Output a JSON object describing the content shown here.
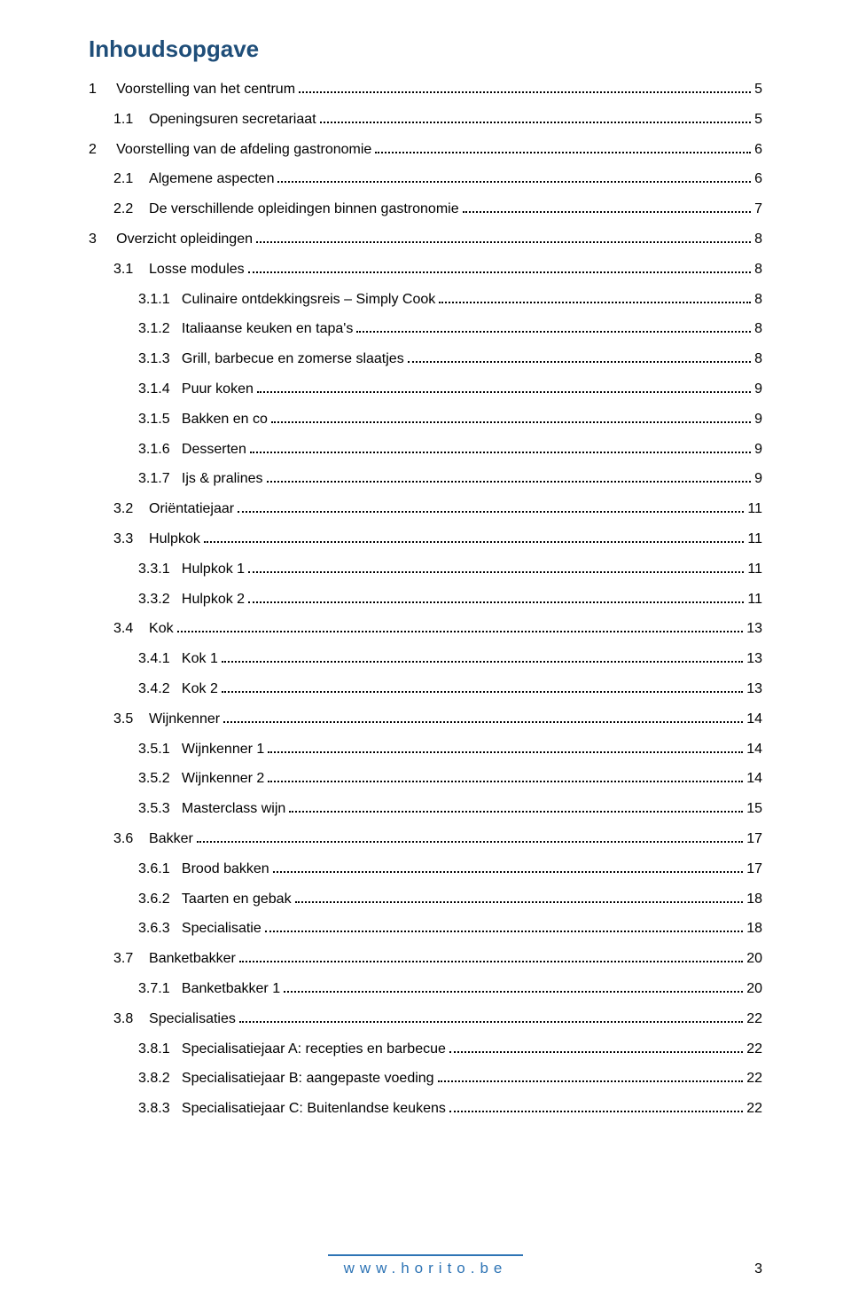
{
  "title": "Inhoudsopgave",
  "colors": {
    "heading": "#1f4e79",
    "text": "#000000",
    "accent": "#2e74b5",
    "background": "#ffffff"
  },
  "typography": {
    "font_family": "Arial",
    "title_fontsize": 26,
    "body_fontsize": 16,
    "footer_fontsize": 17,
    "footer_letterspacing": 6
  },
  "toc": [
    {
      "level": 0,
      "num": "1",
      "text": "Voorstelling van het centrum",
      "page": "5"
    },
    {
      "level": 1,
      "num": "1.1",
      "text": "Openingsuren secretariaat",
      "page": "5"
    },
    {
      "level": 0,
      "num": "2",
      "text": "Voorstelling van de afdeling gastronomie",
      "page": "6"
    },
    {
      "level": 1,
      "num": "2.1",
      "text": "Algemene aspecten",
      "page": "6"
    },
    {
      "level": 1,
      "num": "2.2",
      "text": "De verschillende opleidingen binnen gastronomie",
      "page": "7"
    },
    {
      "level": 0,
      "num": "3",
      "text": "Overzicht opleidingen",
      "page": "8"
    },
    {
      "level": 1,
      "num": "3.1",
      "text": "Losse modules",
      "page": "8"
    },
    {
      "level": 2,
      "num": "3.1.1",
      "text": "Culinaire ontdekkingsreis – Simply Cook",
      "page": "8"
    },
    {
      "level": 2,
      "num": "3.1.2",
      "text": "Italiaanse keuken en tapa's",
      "page": "8"
    },
    {
      "level": 2,
      "num": "3.1.3",
      "text": "Grill, barbecue en zomerse slaatjes",
      "page": "8"
    },
    {
      "level": 2,
      "num": "3.1.4",
      "text": "Puur koken",
      "page": "9"
    },
    {
      "level": 2,
      "num": "3.1.5",
      "text": "Bakken en co",
      "page": "9"
    },
    {
      "level": 2,
      "num": "3.1.6",
      "text": "Desserten",
      "page": "9"
    },
    {
      "level": 2,
      "num": "3.1.7",
      "text": "Ijs & pralines",
      "page": "9"
    },
    {
      "level": 1,
      "num": "3.2",
      "text": "Oriëntatiejaar",
      "page": "11"
    },
    {
      "level": 1,
      "num": "3.3",
      "text": "Hulpkok",
      "page": "11"
    },
    {
      "level": 2,
      "num": "3.3.1",
      "text": "Hulpkok 1",
      "page": "11"
    },
    {
      "level": 2,
      "num": "3.3.2",
      "text": "Hulpkok 2",
      "page": "11"
    },
    {
      "level": 1,
      "num": "3.4",
      "text": "Kok",
      "page": "13"
    },
    {
      "level": 2,
      "num": "3.4.1",
      "text": "Kok 1",
      "page": "13"
    },
    {
      "level": 2,
      "num": "3.4.2",
      "text": "Kok 2",
      "page": "13"
    },
    {
      "level": 1,
      "num": "3.5",
      "text": "Wijnkenner",
      "page": "14"
    },
    {
      "level": 2,
      "num": "3.5.1",
      "text": "Wijnkenner 1",
      "page": "14"
    },
    {
      "level": 2,
      "num": "3.5.2",
      "text": "Wijnkenner 2",
      "page": "14"
    },
    {
      "level": 2,
      "num": "3.5.3",
      "text": "Masterclass wijn",
      "page": "15"
    },
    {
      "level": 1,
      "num": "3.6",
      "text": "Bakker",
      "page": "17"
    },
    {
      "level": 2,
      "num": "3.6.1",
      "text": "Brood bakken",
      "page": "17"
    },
    {
      "level": 2,
      "num": "3.6.2",
      "text": "Taarten en gebak",
      "page": "18"
    },
    {
      "level": 2,
      "num": "3.6.3",
      "text": "Specialisatie",
      "page": "18"
    },
    {
      "level": 1,
      "num": "3.7",
      "text": "Banketbakker",
      "page": "20"
    },
    {
      "level": 2,
      "num": "3.7.1",
      "text": "Banketbakker 1",
      "page": "20"
    },
    {
      "level": 1,
      "num": "3.8",
      "text": "Specialisaties",
      "page": "22"
    },
    {
      "level": 2,
      "num": "3.8.1",
      "text": "Specialisatiejaar A: recepties en barbecue",
      "page": "22"
    },
    {
      "level": 2,
      "num": "3.8.2",
      "text": "Specialisatiejaar B: aangepaste voeding",
      "page": "22"
    },
    {
      "level": 2,
      "num": "3.8.3",
      "text": "Specialisatiejaar C: Buitenlandse keukens",
      "page": "22"
    }
  ],
  "footer": {
    "url": "www.horito.be",
    "line_color": "#2e74b5",
    "line_width": 220
  },
  "page_number": "3"
}
